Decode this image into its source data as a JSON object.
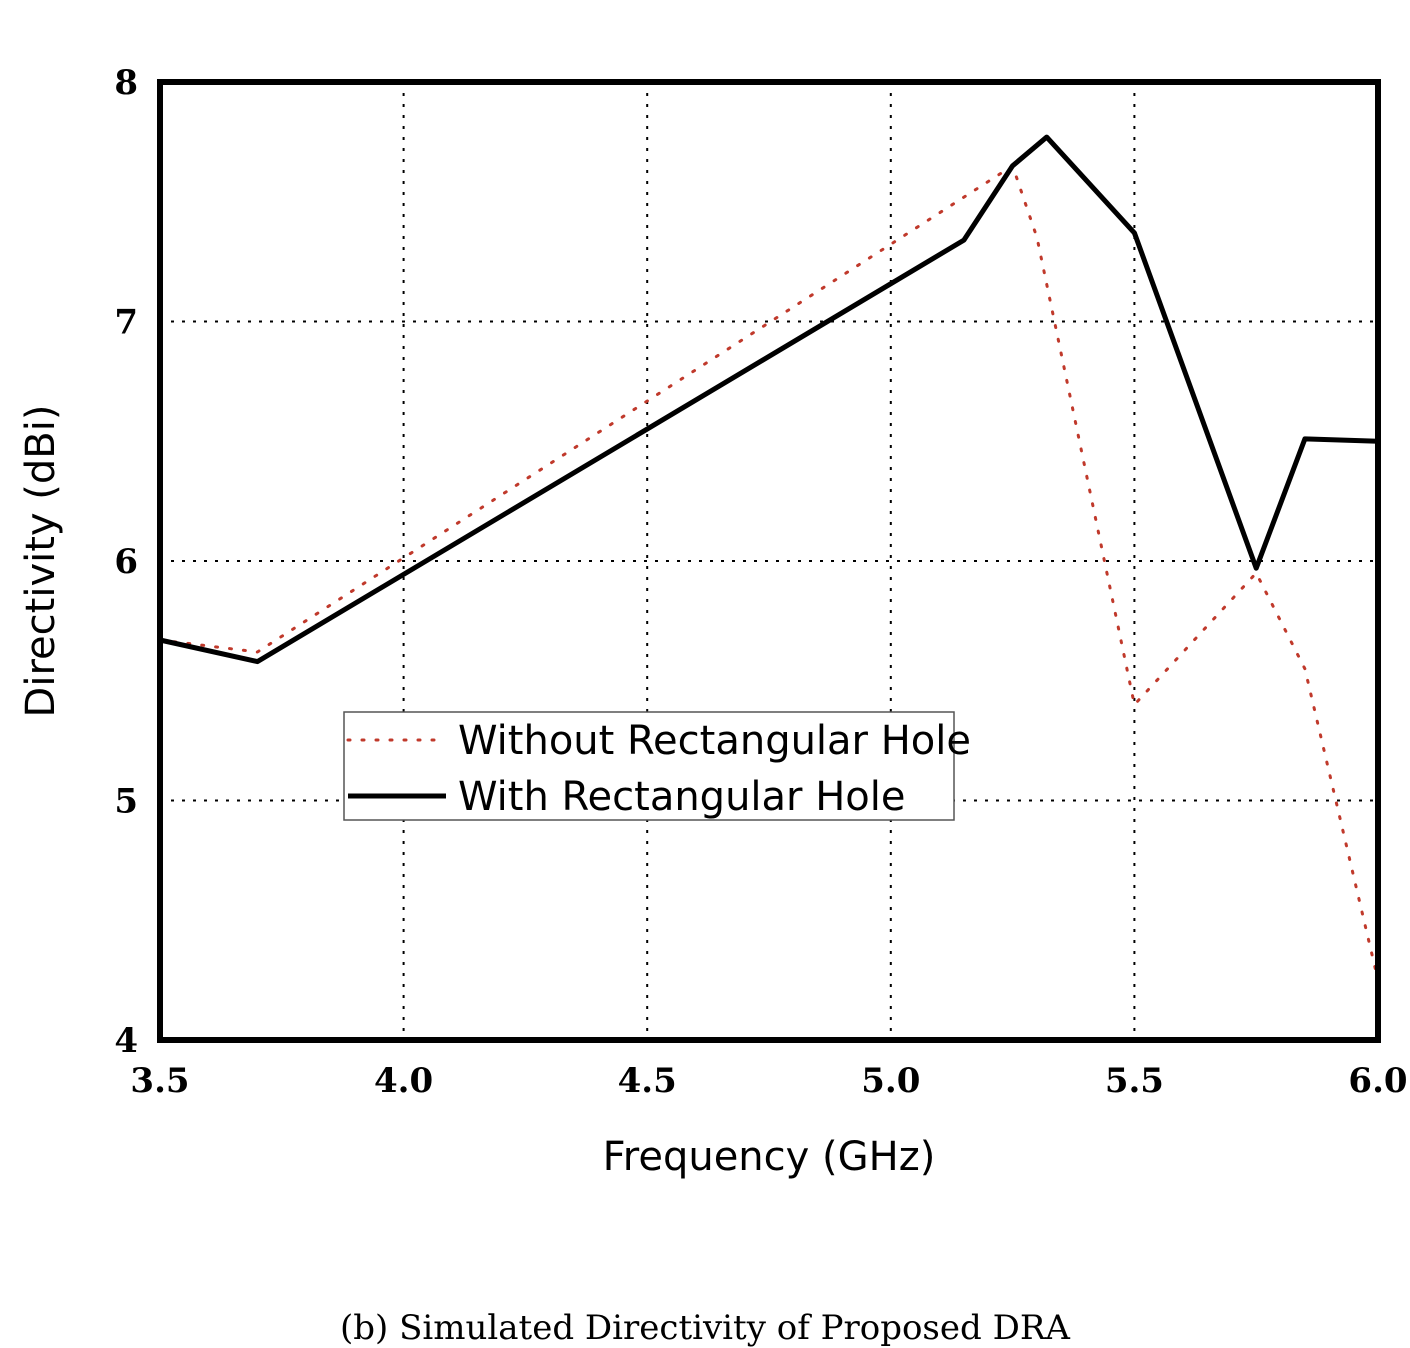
{
  "caption": "(b) Simulated Directivity of Proposed DRA",
  "chart_data": {
    "type": "line",
    "title": "",
    "xlabel": "Frequency (GHz)",
    "ylabel": "Directivity (dBi)",
    "xlim": [
      3.5,
      6.0
    ],
    "ylim": [
      4,
      8
    ],
    "xticks": [
      "3.5",
      "4.0",
      "4.5",
      "5.0",
      "5.5",
      "6.0"
    ],
    "yticks": [
      "4",
      "5",
      "6",
      "7",
      "8"
    ],
    "grid": true,
    "legend_position": "center-left",
    "series": [
      {
        "name": "Without Rectangular Hole",
        "style": "dotted",
        "color": "#c0392b",
        "x": [
          3.5,
          3.7,
          5.25,
          5.3,
          5.5,
          5.75,
          5.85,
          6.0
        ],
        "y": [
          5.67,
          5.62,
          7.65,
          7.35,
          5.4,
          5.95,
          5.55,
          4.25
        ]
      },
      {
        "name": "With Rectangular Hole",
        "style": "solid",
        "color": "#000000",
        "x": [
          3.5,
          3.7,
          5.15,
          5.25,
          5.32,
          5.5,
          5.75,
          5.85,
          6.0
        ],
        "y": [
          5.67,
          5.58,
          7.34,
          7.65,
          7.77,
          7.37,
          5.97,
          6.51,
          6.5
        ]
      }
    ]
  }
}
